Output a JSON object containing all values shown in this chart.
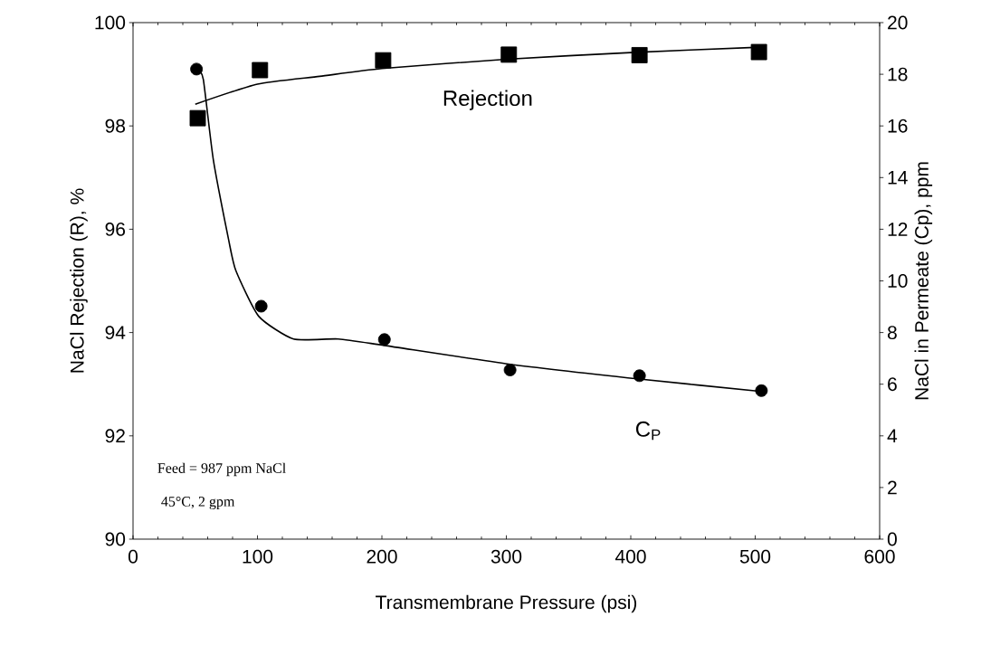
{
  "chart_data": {
    "type": "scatter",
    "xlabel": "Transmembrane Pressure (psi)",
    "ylabel": "NaCl Rejection (R), %",
    "y2label": "NaCl in Permeate (Cp), ppm",
    "xlim": [
      0,
      600
    ],
    "xticks": [
      0,
      100,
      200,
      300,
      400,
      500,
      600
    ],
    "ylim": [
      90,
      100
    ],
    "yticks": [
      90,
      92,
      94,
      96,
      98,
      100
    ],
    "y2lim": [
      0,
      20
    ],
    "y2ticks": [
      0,
      2,
      4,
      6,
      8,
      10,
      12,
      14,
      16,
      18,
      20
    ],
    "grid": false,
    "series": [
      {
        "marker": "square",
        "color": "#000000",
        "x": [
          52,
          102,
          201,
          302,
          407,
          503
        ],
        "values": [
          98.15,
          99.08,
          99.27,
          99.38,
          99.37,
          99.43
        ]
      },
      {
        "type": "line",
        "marker": "none",
        "color": "#000000",
        "x": [
          50,
          100,
          150,
          200,
          300,
          400,
          500
        ],
        "values": [
          98.42,
          98.81,
          98.96,
          99.11,
          99.29,
          99.42,
          99.52
        ]
      },
      {
        "marker": "circle",
        "axis": "y2",
        "color": "#000000",
        "x": [
          51,
          103,
          202,
          303,
          407,
          505
        ],
        "values": [
          18.2,
          9.02,
          7.73,
          6.55,
          6.33,
          5.75
        ]
      },
      {
        "type": "line",
        "marker": "none",
        "axis": "y2",
        "color": "#000000",
        "x": [
          52,
          56.5,
          64.5,
          76.8,
          82.6,
          101,
          129,
          165,
          202,
          302,
          407,
          505
        ],
        "values": [
          18.2,
          17.8,
          14.7,
          11.6,
          10.4,
          8.63,
          7.75,
          7.75,
          7.5,
          6.78,
          6.2,
          5.72
        ]
      }
    ],
    "annotations": [
      "Rejection",
      "C$_{P}$",
      "Feed = 987 ppm NaCl",
      " 45°C, 2 gpm"
    ]
  }
}
